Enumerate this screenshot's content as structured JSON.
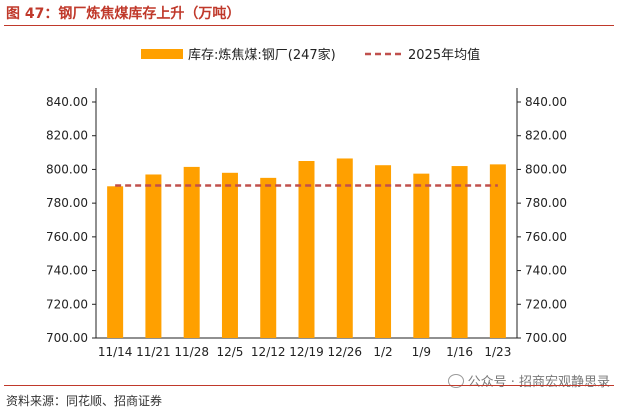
{
  "figure": {
    "title": "图 47：钢厂炼焦煤库存上升（万吨）",
    "source": "资料来源：同花顺、招商证券",
    "watermark": "公众号 · 招商宏观静思录"
  },
  "colors": {
    "bar": "#FFA000",
    "avg_line": "#C0504D",
    "axis": "#222222",
    "title": "#C0392B"
  },
  "chart_data": {
    "type": "bar",
    "categories": [
      "11/14",
      "11/21",
      "11/28",
      "12/5",
      "12/12",
      "12/19",
      "12/26",
      "1/2",
      "1/9",
      "1/16",
      "1/23"
    ],
    "series": [
      {
        "name": "库存:炼焦煤:钢厂(247家)",
        "type": "bar",
        "values": [
          790,
          797,
          801.5,
          798,
          795,
          805,
          806.5,
          802.5,
          797.5,
          802,
          803
        ]
      },
      {
        "name": "2025年均值",
        "type": "line",
        "style": "dashed",
        "values": [
          790.5,
          790.5,
          790.5,
          790.5,
          790.5,
          790.5,
          790.5,
          790.5,
          790.5,
          790.5,
          790.5
        ]
      }
    ],
    "ylim": [
      700,
      840
    ],
    "yticks": [
      "700.00",
      "720.00",
      "740.00",
      "760.00",
      "780.00",
      "800.00",
      "820.00",
      "840.00"
    ],
    "ytick_values": [
      700,
      720,
      740,
      760,
      780,
      800,
      820,
      840
    ],
    "y_right_duplicate": true,
    "legend_position": "top-center"
  }
}
